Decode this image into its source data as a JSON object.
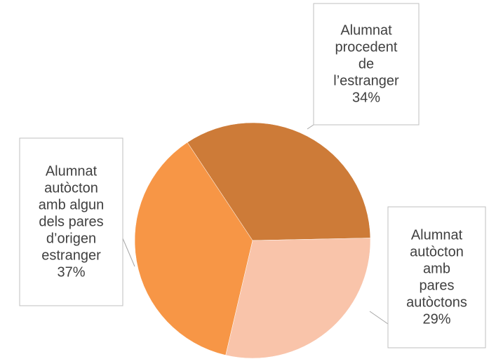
{
  "chart_data": {
    "type": "pie",
    "categories": [
      "Alumnat procedent de l’estranger",
      "Alumnat autòcton amb pares autòctons",
      "Alumnat autòcton amb algun dels pares d’origen estranger"
    ],
    "values": [
      34,
      29,
      37
    ],
    "value_labels": [
      "34%",
      "29%",
      "37%"
    ],
    "colors": [
      "#cd7b38",
      "#f9c4aa",
      "#f79646"
    ]
  }
}
